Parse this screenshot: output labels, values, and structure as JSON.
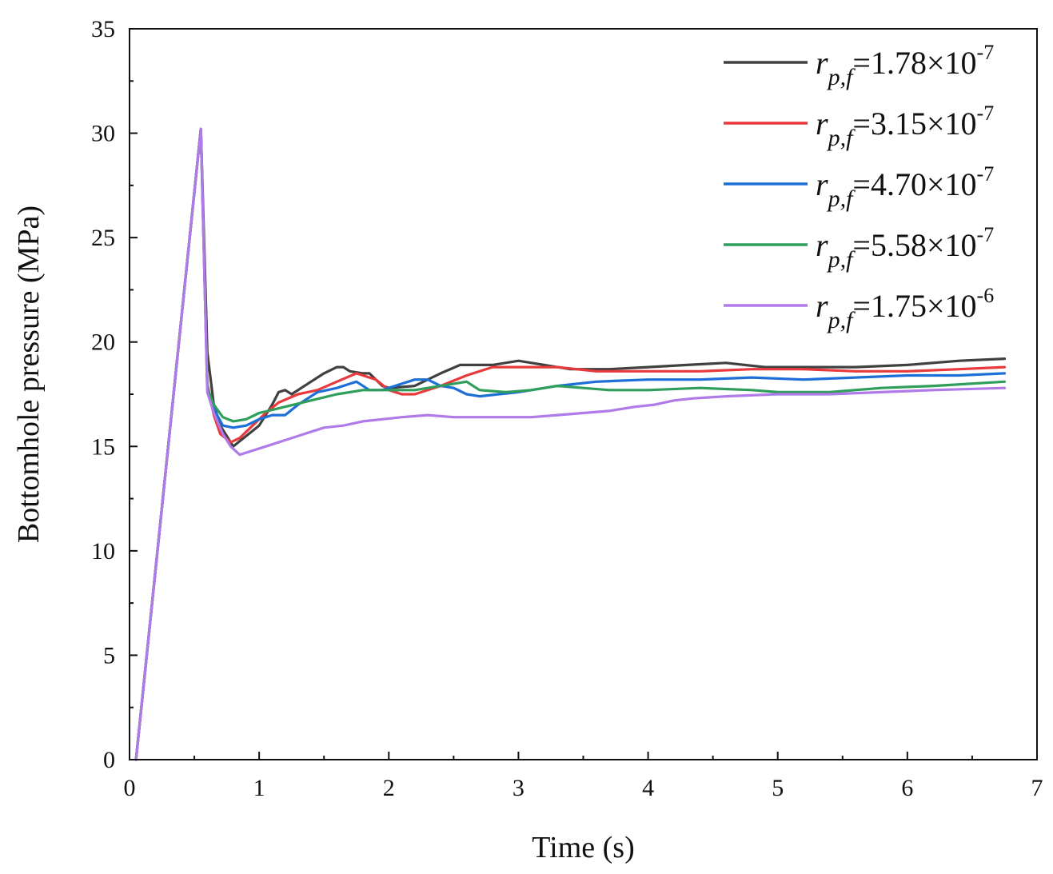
{
  "chart_data": {
    "type": "line",
    "title": "",
    "xlabel": "Time (s)",
    "ylabel": "Bottomhole pressure (MPa)",
    "xlim": [
      0,
      7
    ],
    "ylim": [
      0,
      35
    ],
    "xticks": [
      "0",
      "1",
      "2",
      "3",
      "4",
      "5",
      "6",
      "7"
    ],
    "yticks": [
      "0",
      "5",
      "10",
      "15",
      "20",
      "25",
      "30",
      "35"
    ],
    "grid": false,
    "legend_position": "top-right",
    "series": [
      {
        "name": "r_p,f=1.78×10^-7",
        "legend": {
          "r": "r",
          "sub": "p,f",
          "eq": "=1.78×10",
          "exp": "-7"
        },
        "color": "#404040",
        "points": [
          [
            0.05,
            0
          ],
          [
            0.55,
            30.2
          ],
          [
            0.6,
            19.5
          ],
          [
            0.65,
            17.0
          ],
          [
            0.7,
            16.0
          ],
          [
            0.8,
            15.0
          ],
          [
            0.9,
            15.5
          ],
          [
            1.0,
            16.0
          ],
          [
            1.1,
            17.0
          ],
          [
            1.15,
            17.6
          ],
          [
            1.2,
            17.7
          ],
          [
            1.25,
            17.5
          ],
          [
            1.3,
            17.7
          ],
          [
            1.4,
            18.1
          ],
          [
            1.5,
            18.5
          ],
          [
            1.6,
            18.8
          ],
          [
            1.65,
            18.8
          ],
          [
            1.7,
            18.6
          ],
          [
            1.8,
            18.5
          ],
          [
            1.85,
            18.5
          ],
          [
            1.95,
            17.9
          ],
          [
            2.0,
            17.8
          ],
          [
            2.2,
            17.9
          ],
          [
            2.4,
            18.5
          ],
          [
            2.55,
            18.9
          ],
          [
            2.8,
            18.9
          ],
          [
            3.0,
            19.1
          ],
          [
            3.2,
            18.9
          ],
          [
            3.4,
            18.7
          ],
          [
            3.7,
            18.7
          ],
          [
            4.0,
            18.8
          ],
          [
            4.3,
            18.9
          ],
          [
            4.6,
            19.0
          ],
          [
            4.9,
            18.8
          ],
          [
            5.2,
            18.8
          ],
          [
            5.6,
            18.8
          ],
          [
            6.0,
            18.9
          ],
          [
            6.4,
            19.1
          ],
          [
            6.75,
            19.2
          ]
        ]
      },
      {
        "name": "r_p,f=3.15×10^-7",
        "legend": {
          "r": "r",
          "sub": "p,f",
          "eq": "=3.15×10",
          "exp": "-7"
        },
        "color": "#e8393d",
        "points": [
          [
            0.05,
            0
          ],
          [
            0.55,
            30.2
          ],
          [
            0.6,
            18.0
          ],
          [
            0.65,
            16.5
          ],
          [
            0.7,
            15.6
          ],
          [
            0.78,
            15.2
          ],
          [
            0.85,
            15.4
          ],
          [
            0.95,
            16.0
          ],
          [
            1.05,
            16.6
          ],
          [
            1.15,
            17.1
          ],
          [
            1.3,
            17.5
          ],
          [
            1.45,
            17.7
          ],
          [
            1.6,
            18.1
          ],
          [
            1.75,
            18.5
          ],
          [
            1.9,
            18.2
          ],
          [
            2.0,
            17.7
          ],
          [
            2.1,
            17.5
          ],
          [
            2.2,
            17.5
          ],
          [
            2.4,
            17.9
          ],
          [
            2.6,
            18.4
          ],
          [
            2.8,
            18.8
          ],
          [
            3.0,
            18.8
          ],
          [
            3.3,
            18.8
          ],
          [
            3.6,
            18.6
          ],
          [
            4.0,
            18.6
          ],
          [
            4.4,
            18.6
          ],
          [
            4.8,
            18.7
          ],
          [
            5.2,
            18.7
          ],
          [
            5.6,
            18.6
          ],
          [
            6.0,
            18.6
          ],
          [
            6.4,
            18.7
          ],
          [
            6.75,
            18.8
          ]
        ]
      },
      {
        "name": "r_p,f=4.70×10^-7",
        "legend": {
          "r": "r",
          "sub": "p,f",
          "eq": "=4.70×10",
          "exp": "-7"
        },
        "color": "#1d6fd8",
        "points": [
          [
            0.05,
            0
          ],
          [
            0.55,
            30.2
          ],
          [
            0.6,
            17.8
          ],
          [
            0.65,
            16.8
          ],
          [
            0.72,
            16.0
          ],
          [
            0.8,
            15.9
          ],
          [
            0.9,
            16.0
          ],
          [
            1.0,
            16.3
          ],
          [
            1.1,
            16.5
          ],
          [
            1.2,
            16.5
          ],
          [
            1.3,
            17.0
          ],
          [
            1.45,
            17.6
          ],
          [
            1.6,
            17.8
          ],
          [
            1.7,
            18.0
          ],
          [
            1.75,
            18.1
          ],
          [
            1.85,
            17.7
          ],
          [
            1.95,
            17.7
          ],
          [
            2.1,
            18.0
          ],
          [
            2.2,
            18.2
          ],
          [
            2.3,
            18.2
          ],
          [
            2.4,
            17.9
          ],
          [
            2.5,
            17.8
          ],
          [
            2.6,
            17.5
          ],
          [
            2.7,
            17.4
          ],
          [
            2.85,
            17.5
          ],
          [
            3.0,
            17.6
          ],
          [
            3.3,
            17.9
          ],
          [
            3.6,
            18.1
          ],
          [
            4.0,
            18.2
          ],
          [
            4.4,
            18.2
          ],
          [
            4.8,
            18.3
          ],
          [
            5.2,
            18.2
          ],
          [
            5.6,
            18.3
          ],
          [
            6.0,
            18.4
          ],
          [
            6.4,
            18.4
          ],
          [
            6.75,
            18.5
          ]
        ]
      },
      {
        "name": "r_p,f=5.58×10^-7",
        "legend": {
          "r": "r",
          "sub": "p,f",
          "eq": "=5.58×10",
          "exp": "-7"
        },
        "color": "#2f9e5a",
        "points": [
          [
            0.05,
            0
          ],
          [
            0.55,
            30.2
          ],
          [
            0.6,
            17.8
          ],
          [
            0.65,
            17.0
          ],
          [
            0.72,
            16.4
          ],
          [
            0.8,
            16.2
          ],
          [
            0.9,
            16.3
          ],
          [
            1.0,
            16.6
          ],
          [
            1.2,
            16.9
          ],
          [
            1.4,
            17.2
          ],
          [
            1.6,
            17.5
          ],
          [
            1.8,
            17.7
          ],
          [
            2.0,
            17.7
          ],
          [
            2.2,
            17.7
          ],
          [
            2.4,
            17.9
          ],
          [
            2.6,
            18.1
          ],
          [
            2.7,
            17.7
          ],
          [
            2.9,
            17.6
          ],
          [
            3.1,
            17.7
          ],
          [
            3.3,
            17.9
          ],
          [
            3.5,
            17.8
          ],
          [
            3.7,
            17.7
          ],
          [
            4.0,
            17.7
          ],
          [
            4.4,
            17.8
          ],
          [
            4.8,
            17.7
          ],
          [
            5.0,
            17.6
          ],
          [
            5.4,
            17.6
          ],
          [
            5.8,
            17.8
          ],
          [
            6.2,
            17.9
          ],
          [
            6.75,
            18.1
          ]
        ]
      },
      {
        "name": "r_p,f=1.75×10^-6",
        "legend": {
          "r": "r",
          "sub": "p,f",
          "eq": "=1.75×10",
          "exp": "-6"
        },
        "color": "#b07ae8",
        "points": [
          [
            0.05,
            0
          ],
          [
            0.55,
            30.2
          ],
          [
            0.6,
            17.6
          ],
          [
            0.65,
            16.6
          ],
          [
            0.72,
            15.6
          ],
          [
            0.78,
            15.0
          ],
          [
            0.85,
            14.6
          ],
          [
            0.95,
            14.8
          ],
          [
            1.05,
            15.0
          ],
          [
            1.2,
            15.3
          ],
          [
            1.35,
            15.6
          ],
          [
            1.5,
            15.9
          ],
          [
            1.65,
            16.0
          ],
          [
            1.8,
            16.2
          ],
          [
            1.95,
            16.3
          ],
          [
            2.1,
            16.4
          ],
          [
            2.3,
            16.5
          ],
          [
            2.5,
            16.4
          ],
          [
            2.7,
            16.4
          ],
          [
            2.9,
            16.4
          ],
          [
            3.1,
            16.4
          ],
          [
            3.3,
            16.5
          ],
          [
            3.5,
            16.6
          ],
          [
            3.7,
            16.7
          ],
          [
            3.9,
            16.9
          ],
          [
            4.05,
            17.0
          ],
          [
            4.2,
            17.2
          ],
          [
            4.35,
            17.3
          ],
          [
            4.6,
            17.4
          ],
          [
            5.0,
            17.5
          ],
          [
            5.4,
            17.5
          ],
          [
            5.8,
            17.6
          ],
          [
            6.2,
            17.7
          ],
          [
            6.75,
            17.8
          ]
        ]
      }
    ]
  }
}
